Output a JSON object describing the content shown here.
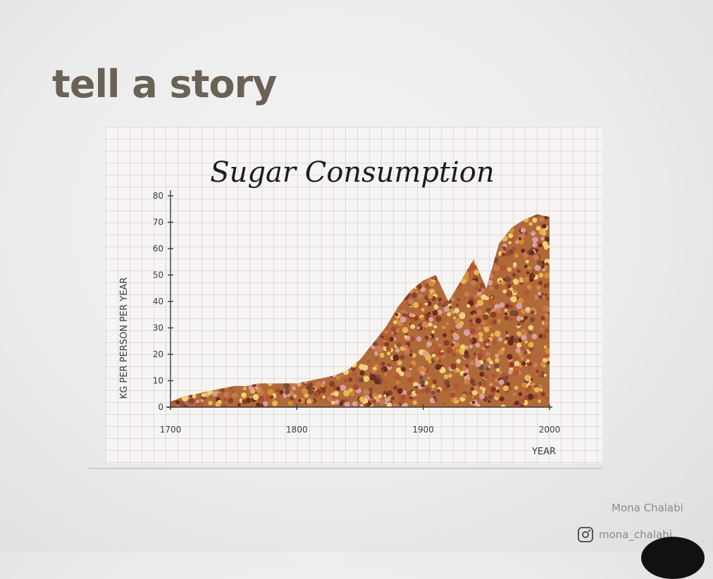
{
  "slide": {
    "title": "tell a story"
  },
  "chart_data": {
    "type": "area",
    "title": "Sugar Consumption",
    "ylabel": "KG PER PERSON PER YEAR",
    "xlabel": "YEAR",
    "xlim": [
      1700,
      2000
    ],
    "ylim": [
      0,
      80
    ],
    "x_ticks": [
      1700,
      1800,
      1900,
      2000
    ],
    "y_ticks": [
      0,
      10,
      20,
      30,
      40,
      50,
      60,
      70,
      80
    ],
    "x": [
      1700,
      1710,
      1720,
      1730,
      1740,
      1750,
      1760,
      1770,
      1780,
      1790,
      1800,
      1810,
      1820,
      1830,
      1840,
      1850,
      1860,
      1870,
      1880,
      1890,
      1900,
      1910,
      1920,
      1930,
      1940,
      1950,
      1960,
      1970,
      1980,
      1990,
      2000
    ],
    "values": [
      2,
      4,
      5,
      6,
      7,
      8,
      8,
      9,
      9,
      9,
      9,
      10,
      11,
      12,
      14,
      18,
      24,
      30,
      38,
      44,
      48,
      50,
      40,
      48,
      56,
      45,
      62,
      68,
      71,
      73,
      72
    ],
    "grid": true,
    "fill_colors": [
      "#8a3b25",
      "#b5582c",
      "#d88a3a",
      "#e9b654",
      "#6b2a1f",
      "#c97a52",
      "#f1d27a",
      "#a64b33",
      "#d9a0a0",
      "#7a4a3a"
    ]
  },
  "credits": {
    "name": "Mona Chalabi",
    "handle": "mona_chalabi"
  },
  "icons": {
    "social": "instagram-icon"
  }
}
